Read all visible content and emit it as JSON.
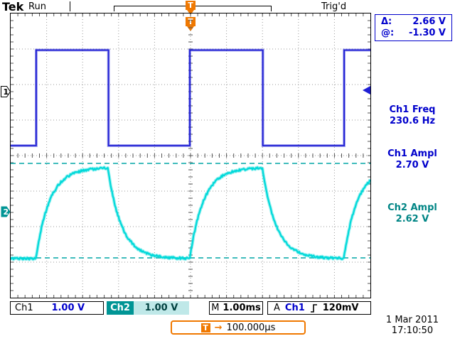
{
  "colors": {
    "ch1_trace": "#1f1fd4",
    "ch1_text": "#0000cc",
    "ch2_trace": "#00d9d9",
    "ch2_text": "#008585",
    "ch2_chip": "#009595",
    "ch2_chip_light": "#bfe8e8",
    "orange": "#f07800",
    "cursor_line": "#00a5a5"
  },
  "header": {
    "logo": "Tek",
    "status": "Run",
    "trigger_status": "Trig'd"
  },
  "markers": {
    "trig_t": "T",
    "ch1": "1",
    "ch2": "2"
  },
  "cursor_readout": {
    "delta_label": "Δ:",
    "delta_value": "2.66 V",
    "at_label": "@:",
    "at_value": "-1.30 V"
  },
  "measurements": [
    {
      "label": "Ch1 Freq",
      "value": "230.6 Hz"
    },
    {
      "label": "Ch1 Ampl",
      "value": "2.70 V"
    },
    {
      "label": "Ch2 Ampl",
      "value": "2.62 V"
    }
  ],
  "bottom_bar": {
    "ch1_label": "Ch1",
    "ch1_scale": "1.00 V",
    "ch2_label": "Ch2",
    "ch2_scale": "1.00 V",
    "timebase_label": "M",
    "timebase": "1.00ms",
    "trigger_line_label": "A",
    "trigger_source": "Ch1",
    "trigger_level": "120mV"
  },
  "trigger_position": {
    "icon": "T",
    "arrow": "→",
    "value": "100.000µs"
  },
  "datetime": {
    "date": "1 Mar 2011",
    "time": "17:10:50"
  },
  "chart_data": {
    "type": "line",
    "title": "Oscilloscope display: Ch1 square wave, Ch2 RC exponential response",
    "x": {
      "divisions": 10,
      "time_per_div": "1.00 ms"
    },
    "y": {
      "divisions": 8,
      "volts_per_div_ch1": "1.00 V",
      "volts_per_div_ch2": "1.00 V"
    },
    "series": [
      {
        "name": "Ch1",
        "shape": "square",
        "color": "#1f1fd4",
        "high_div_y": 1.03,
        "low_div_y": 3.72,
        "initial_state": "low",
        "edges": [
          {
            "x_div": 0.71,
            "type": "rise"
          },
          {
            "x_div": 2.72,
            "type": "fall"
          },
          {
            "x_div": 4.98,
            "type": "rise"
          },
          {
            "x_div": 7.01,
            "type": "fall"
          },
          {
            "x_div": 9.27,
            "type": "rise"
          }
        ]
      },
      {
        "name": "Ch2",
        "shape": "exponential",
        "color": "#00d9d9",
        "high_div_y": 4.34,
        "low_div_y": 6.9,
        "tau_div": 0.38,
        "driven_by": "Ch1"
      }
    ],
    "cursors": {
      "orientation": "horizontal",
      "color": "#00a5a5",
      "y_div": [
        4.22,
        6.88
      ],
      "delta": "2.66 V",
      "at": "-1.30 V"
    },
    "trigger": {
      "x_div": 4.98,
      "level_arrow_y_div": 2.16
    }
  }
}
